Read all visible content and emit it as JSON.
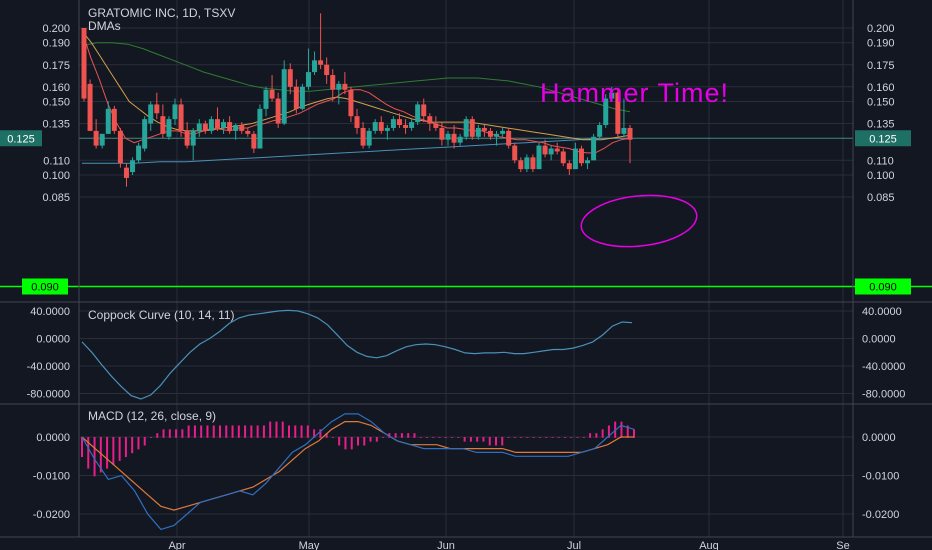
{
  "header": {
    "title": "GRATOMIC INC, 1D, TSXV",
    "subtitle": "DMAs"
  },
  "annotation": "Hammer Time!",
  "colors": {
    "background": "#131722",
    "grid": "#2a2e39",
    "up": "#26a69a",
    "down": "#ef5350",
    "support": "#00ff00",
    "annotation": "#e600e6",
    "sma_short": "#ef5350",
    "sma_mid": "#d2a04a",
    "sma_long": "#2e7d32",
    "sma_200": "#4a90b8",
    "macd_line": "#2f6fbf",
    "signal_line": "#e07a3a",
    "hist": "#e91e8c",
    "coppock": "#4a90b8"
  },
  "chart_data": [
    {
      "type": "candlestick",
      "name": "GRATOMIC INC, 1D, TSXV",
      "ylim": [
        0.085,
        0.205
      ],
      "yticks": [
        "0.200",
        "0.190",
        "0.175",
        "0.160",
        "0.150",
        "0.135",
        "0.110",
        "0.100",
        "0.085"
      ],
      "xticks": [
        "Apr",
        "May",
        "Jun",
        "Jul",
        "Aug",
        "Se"
      ],
      "price_label": "0.125",
      "support_label": "0.090",
      "support_level": 0.09,
      "candles": [
        [
          0.2,
          0.2,
          0.15,
          0.152
        ],
        [
          0.162,
          0.165,
          0.13,
          0.13
        ],
        [
          0.13,
          0.138,
          0.118,
          0.12
        ],
        [
          0.12,
          0.128,
          0.118,
          0.128
        ],
        [
          0.128,
          0.15,
          0.128,
          0.145
        ],
        [
          0.145,
          0.147,
          0.128,
          0.13
        ],
        [
          0.13,
          0.132,
          0.105,
          0.108
        ],
        [
          0.105,
          0.108,
          0.092,
          0.098
        ],
        [
          0.102,
          0.112,
          0.1,
          0.11
        ],
        [
          0.11,
          0.122,
          0.108,
          0.12
        ],
        [
          0.118,
          0.14,
          0.116,
          0.138
        ],
        [
          0.135,
          0.15,
          0.13,
          0.148
        ],
        [
          0.148,
          0.156,
          0.138,
          0.142
        ],
        [
          0.14,
          0.148,
          0.125,
          0.128
        ],
        [
          0.126,
          0.14,
          0.124,
          0.138
        ],
        [
          0.138,
          0.152,
          0.134,
          0.148
        ],
        [
          0.148,
          0.152,
          0.126,
          0.13
        ],
        [
          0.13,
          0.136,
          0.118,
          0.12
        ],
        [
          0.12,
          0.132,
          0.11,
          0.13
        ],
        [
          0.13,
          0.138,
          0.126,
          0.135
        ],
        [
          0.135,
          0.137,
          0.128,
          0.13
        ],
        [
          0.13,
          0.14,
          0.128,
          0.138
        ],
        [
          0.138,
          0.146,
          0.13,
          0.132
        ],
        [
          0.132,
          0.138,
          0.128,
          0.136
        ],
        [
          0.136,
          0.14,
          0.128,
          0.13
        ],
        [
          0.13,
          0.135,
          0.124,
          0.134
        ],
        [
          0.134,
          0.136,
          0.128,
          0.13
        ],
        [
          0.13,
          0.132,
          0.126,
          0.128
        ],
        [
          0.128,
          0.13,
          0.115,
          0.118
        ],
        [
          0.118,
          0.148,
          0.118,
          0.145
        ],
        [
          0.145,
          0.16,
          0.14,
          0.158
        ],
        [
          0.158,
          0.168,
          0.15,
          0.152
        ],
        [
          0.152,
          0.156,
          0.132,
          0.135
        ],
        [
          0.135,
          0.178,
          0.134,
          0.172
        ],
        [
          0.172,
          0.176,
          0.155,
          0.16
        ],
        [
          0.16,
          0.165,
          0.142,
          0.145
        ],
        [
          0.145,
          0.162,
          0.144,
          0.16
        ],
        [
          0.16,
          0.186,
          0.158,
          0.17
        ],
        [
          0.17,
          0.184,
          0.168,
          0.178
        ],
        [
          0.178,
          0.21,
          0.172,
          0.175
        ],
        [
          0.175,
          0.18,
          0.162,
          0.168
        ],
        [
          0.168,
          0.172,
          0.15,
          0.158
        ],
        [
          0.158,
          0.164,
          0.148,
          0.162
        ],
        [
          0.162,
          0.17,
          0.155,
          0.158
        ],
        [
          0.158,
          0.16,
          0.136,
          0.14
        ],
        [
          0.14,
          0.145,
          0.128,
          0.132
        ],
        [
          0.132,
          0.136,
          0.118,
          0.12
        ],
        [
          0.12,
          0.132,
          0.118,
          0.13
        ],
        [
          0.13,
          0.138,
          0.128,
          0.136
        ],
        [
          0.136,
          0.14,
          0.128,
          0.13
        ],
        [
          0.13,
          0.134,
          0.124,
          0.132
        ],
        [
          0.132,
          0.14,
          0.13,
          0.138
        ],
        [
          0.138,
          0.142,
          0.132,
          0.134
        ],
        [
          0.134,
          0.138,
          0.128,
          0.132
        ],
        [
          0.132,
          0.138,
          0.13,
          0.136
        ],
        [
          0.136,
          0.15,
          0.134,
          0.148
        ],
        [
          0.148,
          0.152,
          0.136,
          0.14
        ],
        [
          0.14,
          0.142,
          0.13,
          0.135
        ],
        [
          0.135,
          0.14,
          0.13,
          0.132
        ],
        [
          0.132,
          0.136,
          0.12,
          0.124
        ],
        [
          0.124,
          0.13,
          0.12,
          0.128
        ],
        [
          0.128,
          0.134,
          0.118,
          0.122
        ],
        [
          0.122,
          0.128,
          0.12,
          0.126
        ],
        [
          0.126,
          0.14,
          0.124,
          0.138
        ],
        [
          0.138,
          0.14,
          0.124,
          0.126
        ],
        [
          0.126,
          0.134,
          0.124,
          0.132
        ],
        [
          0.132,
          0.134,
          0.126,
          0.13
        ],
        [
          0.13,
          0.132,
          0.124,
          0.126
        ],
        [
          0.126,
          0.13,
          0.12,
          0.128
        ],
        [
          0.128,
          0.132,
          0.126,
          0.13
        ],
        [
          0.13,
          0.132,
          0.118,
          0.12
        ],
        [
          0.12,
          0.122,
          0.108,
          0.11
        ],
        [
          0.11,
          0.112,
          0.102,
          0.104
        ],
        [
          0.104,
          0.114,
          0.102,
          0.112
        ],
        [
          0.112,
          0.114,
          0.102,
          0.104
        ],
        [
          0.104,
          0.122,
          0.104,
          0.12
        ],
        [
          0.12,
          0.124,
          0.112,
          0.114
        ],
        [
          0.114,
          0.12,
          0.11,
          0.118
        ],
        [
          0.118,
          0.122,
          0.114,
          0.116
        ],
        [
          0.116,
          0.118,
          0.106,
          0.108
        ],
        [
          0.108,
          0.11,
          0.1,
          0.104
        ],
        [
          0.104,
          0.122,
          0.104,
          0.118
        ],
        [
          0.118,
          0.12,
          0.106,
          0.108
        ],
        [
          0.108,
          0.112,
          0.104,
          0.11
        ],
        [
          0.11,
          0.128,
          0.11,
          0.126
        ],
        [
          0.126,
          0.136,
          0.124,
          0.134
        ],
        [
          0.134,
          0.155,
          0.132,
          0.152
        ],
        [
          0.152,
          0.16,
          0.15,
          0.156
        ],
        [
          0.156,
          0.158,
          0.126,
          0.128
        ],
        [
          0.128,
          0.152,
          0.126,
          0.132
        ],
        [
          0.132,
          0.134,
          0.108,
          0.124
        ]
      ],
      "sma_short": [
        0.198,
        0.18,
        0.165,
        0.148,
        0.135,
        0.125,
        0.122,
        0.124,
        0.126,
        0.128,
        0.13,
        0.13,
        0.128,
        0.128,
        0.13,
        0.132,
        0.131,
        0.13,
        0.132,
        0.132,
        0.134,
        0.135,
        0.137,
        0.138,
        0.14,
        0.142,
        0.145,
        0.148,
        0.15,
        0.152,
        0.156,
        0.158,
        0.158,
        0.156,
        0.152,
        0.148,
        0.145,
        0.143,
        0.14,
        0.138,
        0.136,
        0.134,
        0.132,
        0.132,
        0.131,
        0.13,
        0.13,
        0.128,
        0.126,
        0.125,
        0.124,
        0.124,
        0.123,
        0.122,
        0.12,
        0.119,
        0.118,
        0.116,
        0.115,
        0.115,
        0.118,
        0.122,
        0.124,
        0.125
      ],
      "sma_mid": [
        0.198,
        0.19,
        0.18,
        0.17,
        0.16,
        0.15,
        0.145,
        0.14,
        0.136,
        0.133,
        0.131,
        0.13,
        0.13,
        0.13,
        0.131,
        0.132,
        0.133,
        0.134,
        0.135,
        0.137,
        0.139,
        0.141,
        0.143,
        0.146,
        0.148,
        0.15,
        0.152,
        0.153,
        0.152,
        0.15,
        0.148,
        0.146,
        0.144,
        0.142,
        0.14,
        0.138,
        0.137,
        0.136,
        0.136,
        0.136,
        0.136,
        0.136,
        0.135,
        0.134,
        0.133,
        0.132,
        0.131,
        0.13,
        0.129,
        0.128,
        0.127,
        0.126,
        0.125,
        0.124,
        0.124,
        0.124,
        0.125,
        0.126,
        0.127
      ],
      "sma_long": [
        0.188,
        0.19,
        0.19,
        0.189,
        0.186,
        0.182,
        0.178,
        0.174,
        0.17,
        0.167,
        0.164,
        0.161,
        0.159,
        0.158,
        0.157,
        0.157,
        0.158,
        0.159,
        0.16,
        0.161,
        0.162,
        0.163,
        0.164,
        0.165,
        0.166,
        0.166,
        0.166,
        0.165,
        0.164,
        0.162,
        0.16,
        0.157,
        0.154,
        0.151,
        0.148,
        0.145,
        0.143
      ],
      "sma_200": [
        0.108,
        0.108,
        0.108,
        0.109,
        0.109,
        0.11,
        0.111,
        0.112,
        0.113,
        0.114,
        0.115,
        0.116,
        0.117,
        0.118,
        0.119,
        0.12,
        0.121,
        0.122,
        0.123,
        0.124,
        0.125,
        0.125
      ]
    },
    {
      "type": "line",
      "name": "Coppock Curve (10, 14, 11)",
      "ylim": [
        -90,
        42
      ],
      "yticks": [
        "40.0000",
        "0.0000",
        "-40.0000",
        "-80.0000"
      ],
      "ytick_values": [
        40,
        0,
        -40,
        -80
      ],
      "values": [
        -5,
        -20,
        -38,
        -55,
        -70,
        -83,
        -88,
        -82,
        -68,
        -50,
        -35,
        -20,
        -8,
        0,
        10,
        22,
        30,
        34,
        36,
        38,
        40,
        41,
        40,
        36,
        30,
        20,
        5,
        -10,
        -20,
        -26,
        -28,
        -25,
        -18,
        -12,
        -9,
        -8,
        -9,
        -12,
        -16,
        -21,
        -22,
        -21,
        -21,
        -20,
        -22,
        -22,
        -20,
        -18,
        -16,
        -16,
        -14,
        -10,
        -5,
        5,
        18,
        24,
        23
      ]
    },
    {
      "type": "line",
      "name": "MACD (12, 26, close, 9)",
      "ylim": [
        -0.025,
        0.007
      ],
      "yticks": [
        "0.0000",
        "-0.0100",
        "-0.0200"
      ],
      "ytick_values": [
        0,
        -0.01,
        -0.02
      ],
      "series": [
        {
          "name": "MACD",
          "values": [
            0.0,
            -0.006,
            -0.011,
            -0.01,
            -0.014,
            -0.02,
            -0.024,
            -0.023,
            -0.02,
            -0.017,
            -0.016,
            -0.015,
            -0.014,
            -0.015,
            -0.012,
            -0.008,
            -0.004,
            -0.002,
            0.001,
            0.004,
            0.006,
            0.006,
            0.004,
            0.001,
            -0.001,
            -0.002,
            -0.003,
            -0.003,
            -0.003,
            -0.003,
            -0.004,
            -0.004,
            -0.004,
            -0.005,
            -0.005,
            -0.005,
            -0.005,
            -0.005,
            -0.004,
            -0.003,
            0.0,
            0.003,
            0.002
          ]
        },
        {
          "name": "Signal",
          "values": [
            0.0,
            -0.003,
            -0.006,
            -0.009,
            -0.012,
            -0.015,
            -0.018,
            -0.019,
            -0.018,
            -0.017,
            -0.016,
            -0.015,
            -0.014,
            -0.013,
            -0.011,
            -0.009,
            -0.006,
            -0.003,
            -0.001,
            0.002,
            0.004,
            0.004,
            0.003,
            0.001,
            -0.001,
            -0.002,
            -0.002,
            -0.002,
            -0.003,
            -0.003,
            -0.003,
            -0.003,
            -0.003,
            -0.004,
            -0.004,
            -0.004,
            -0.004,
            -0.004,
            -0.004,
            -0.003,
            -0.002,
            0.0,
            0.0
          ]
        },
        {
          "name": "Histogram",
          "values": [
            -0.005,
            -0.008,
            -0.01,
            -0.009,
            -0.008,
            -0.007,
            -0.006,
            -0.005,
            -0.004,
            -0.003,
            -0.002,
            0.0,
            0.001,
            0.002,
            0.002,
            0.002,
            0.002,
            0.003,
            0.003,
            0.003,
            0.003,
            0.003,
            0.003,
            0.003,
            0.003,
            0.003,
            0.003,
            0.003,
            0.003,
            0.003,
            0.004,
            0.004,
            0.004,
            0.003,
            0.003,
            0.003,
            0.003,
            0.002,
            0.002,
            0.001,
            0.0,
            -0.002,
            -0.003,
            -0.003,
            -0.002,
            -0.002,
            -0.001,
            -0.001,
            0.0,
            0.001,
            0.001,
            0.001,
            0.001,
            0.001,
            0.0,
            0.0,
            0.0,
            0.0,
            0.0,
            0.0,
            0.0,
            -0.001,
            -0.001,
            -0.001,
            -0.001,
            -0.002,
            -0.002,
            -0.002,
            0.0,
            0.0,
            0.0,
            0.0,
            0.0,
            0.0,
            0.0,
            0.0,
            0.0,
            0.0,
            0.0,
            0.0,
            0.0,
            0.001,
            0.001,
            0.002,
            0.003,
            0.004,
            0.004,
            0.003,
            0.002
          ]
        }
      ]
    }
  ]
}
